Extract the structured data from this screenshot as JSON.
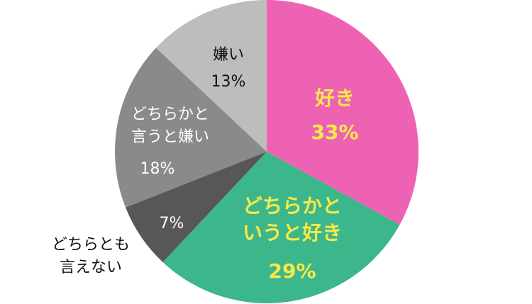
{
  "chart_data": {
    "type": "pie",
    "start": "top",
    "direction": "clockwise",
    "slices": [
      {
        "label_lines": [
          "好き"
        ],
        "value": 33,
        "value_label": "33%",
        "color": "#EE62B3",
        "text_color": "#F7E94A",
        "bold": true
      },
      {
        "label_lines": [
          "どちらかと",
          "いうと好き"
        ],
        "value": 29,
        "value_label": "29%",
        "color": "#3CB78B",
        "text_color": "#F7E94A",
        "bold": true
      },
      {
        "label_lines": [
          "どちらとも",
          "言えない"
        ],
        "value": 7,
        "value_label": "7%",
        "color": "#575757",
        "text_color": "#FFFFFF",
        "label_text_color": "#111111",
        "label_outside": true
      },
      {
        "label_lines": [
          "どちらかと",
          "言うと嫌い"
        ],
        "value": 18,
        "value_label": "18%",
        "color": "#8A8A8A",
        "text_color": "#FFFFFF"
      },
      {
        "label_lines": [
          "嫌い"
        ],
        "value": 13,
        "value_label": "13%",
        "color": "#BDBDBD",
        "text_color": "#111111"
      }
    ]
  }
}
